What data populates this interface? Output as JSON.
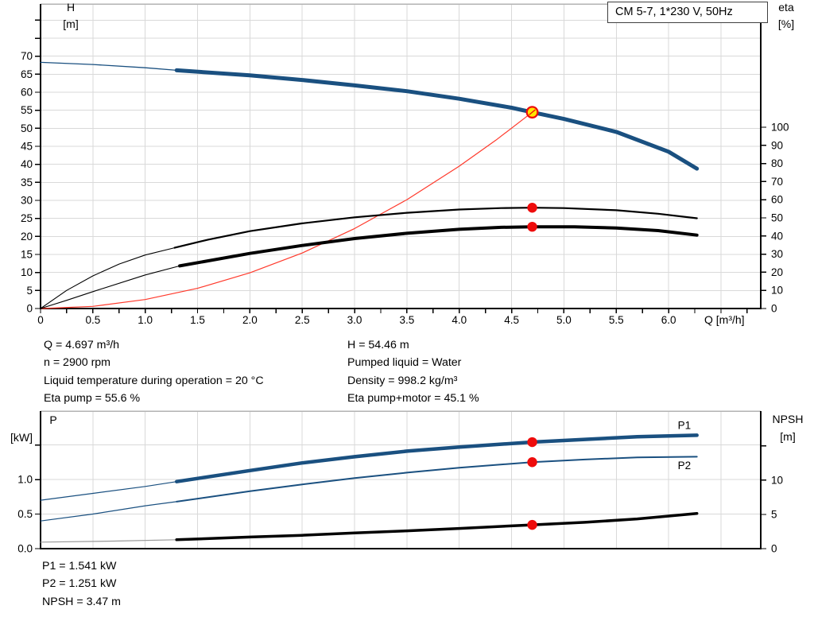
{
  "title_box": "CM 5-7, 1*230 V, 50Hz",
  "axis_headers": {
    "top_left_1": "H",
    "top_left_2": "[m]",
    "top_right_1": "eta",
    "top_right_2": "[%]",
    "x_label": "Q [m³/h]",
    "bottom_left_1": "P",
    "bottom_left_2": "[kW]",
    "bottom_right_1": "NPSH",
    "bottom_right_2": "[m]"
  },
  "info_top": {
    "left": [
      "Q = 4.697 m³/h",
      "n = 2900 rpm",
      "Liquid temperature during operation = 20 °C",
      "Eta pump = 55.6 %"
    ],
    "right": [
      "H = 54.46 m",
      "Pumped liquid = Water",
      "Density = 998.2 kg/m³",
      "Eta pump+motor = 45.1 %"
    ]
  },
  "info_bottom": [
    "P1 = 1.541 kW",
    "P2 = 1.251 kW",
    "NPSH = 3.47 m"
  ],
  "colors": {
    "curve_blue": "#1a5080",
    "curve_black": "#000000",
    "system_red": "#ff392b",
    "dot_red": "#ee0c0c",
    "op_fill": "#ffe600",
    "grid": "#d9d9d9",
    "border_gray": "#b3b3b3",
    "axis": "#000000",
    "npsh_thin": "#999999"
  },
  "operating_point": {
    "q": 4.697,
    "h": 54.46
  },
  "chart_data": [
    {
      "id": "top",
      "type": "line",
      "title": "CM 5-7, 1*230 V, 50Hz",
      "x": {
        "label": "Q [m³/h]",
        "min": 0,
        "max": 6.88,
        "grid_step": 0.5,
        "tick_step": 0.25,
        "labeled_ticks": [
          [
            0,
            "0"
          ],
          [
            0.5,
            "0.5"
          ],
          [
            1,
            "1.0"
          ],
          [
            1.5,
            "1.5"
          ],
          [
            2,
            "2.0"
          ],
          [
            2.5,
            "2.5"
          ],
          [
            3,
            "3.0"
          ],
          [
            3.5,
            "3.5"
          ],
          [
            4,
            "4.0"
          ],
          [
            4.5,
            "4.5"
          ],
          [
            5,
            "5.0"
          ],
          [
            5.5,
            "5.5"
          ],
          [
            6,
            "6.0"
          ]
        ]
      },
      "y_left": {
        "label": "H [m]",
        "min": 0,
        "max": 84.5,
        "grid_step": 5,
        "labeled_ticks": [
          [
            0,
            "0"
          ],
          [
            5,
            "5"
          ],
          [
            10,
            "10"
          ],
          [
            15,
            "15"
          ],
          [
            20,
            "20"
          ],
          [
            25,
            "25"
          ],
          [
            30,
            "30"
          ],
          [
            35,
            "35"
          ],
          [
            40,
            "40"
          ],
          [
            45,
            "45"
          ],
          [
            50,
            "50"
          ],
          [
            55,
            "55"
          ],
          [
            60,
            "60"
          ],
          [
            65,
            "65"
          ],
          [
            70,
            "70"
          ]
        ],
        "extra_ticks": [
          75,
          80
        ]
      },
      "y_right": {
        "label": "eta [%]",
        "min": 0,
        "max": 168,
        "labeled_ticks": [
          [
            0,
            "0"
          ],
          [
            10,
            "10"
          ],
          [
            20,
            "20"
          ],
          [
            30,
            "30"
          ],
          [
            40,
            "40"
          ],
          [
            50,
            "50"
          ],
          [
            60,
            "60"
          ],
          [
            70,
            "70"
          ],
          [
            80,
            "80"
          ],
          [
            90,
            "90"
          ],
          [
            100,
            "100"
          ]
        ],
        "extra_ticks": []
      },
      "series": [
        {
          "name": "pump-curve-thin",
          "axis": "left",
          "color_key": "curve_blue",
          "width": 1.3,
          "points": [
            [
              0,
              68.3
            ],
            [
              0.5,
              67.7
            ],
            [
              1,
              66.8
            ],
            [
              1.3,
              66.1
            ]
          ]
        },
        {
          "name": "pump-curve",
          "axis": "left",
          "color_key": "curve_blue",
          "width": 5,
          "points": [
            [
              1.3,
              66.1
            ],
            [
              2,
              64.7
            ],
            [
              2.5,
              63.4
            ],
            [
              3,
              61.9
            ],
            [
              3.5,
              60.3
            ],
            [
              4,
              58.2
            ],
            [
              4.5,
              55.7
            ],
            [
              4.697,
              54.46
            ],
            [
              5,
              52.6
            ],
            [
              5.5,
              49
            ],
            [
              6,
              43.5
            ],
            [
              6.27,
              38.8
            ]
          ]
        },
        {
          "name": "system-curve",
          "axis": "left",
          "color_key": "system_red",
          "width": 1.2,
          "points": [
            [
              0,
              0
            ],
            [
              0.5,
              0.6
            ],
            [
              1,
              2.5
            ],
            [
              1.5,
              5.6
            ],
            [
              2,
              9.9
            ],
            [
              2.5,
              15.4
            ],
            [
              3,
              22.2
            ],
            [
              3.5,
              30.2
            ],
            [
              4,
              39.5
            ],
            [
              4.35,
              46.7
            ],
            [
              4.697,
              54.46
            ]
          ]
        },
        {
          "name": "eta-pump-thin",
          "axis": "right",
          "color_key": "curve_black",
          "width": 1.1,
          "points": [
            [
              0,
              0
            ],
            [
              0.25,
              10
            ],
            [
              0.5,
              18
            ],
            [
              0.75,
              24.5
            ],
            [
              1,
              29.5
            ],
            [
              1.28,
              33.5
            ]
          ]
        },
        {
          "name": "eta-pump",
          "axis": "right",
          "color_key": "curve_black",
          "width": 2.2,
          "points": [
            [
              1.28,
              33.5
            ],
            [
              1.6,
              38
            ],
            [
              2,
              42.7
            ],
            [
              2.5,
              47
            ],
            [
              3,
              50.3
            ],
            [
              3.5,
              52.8
            ],
            [
              4,
              54.6
            ],
            [
              4.4,
              55.4
            ],
            [
              4.697,
              55.6
            ],
            [
              5,
              55.4
            ],
            [
              5.5,
              54.2
            ],
            [
              5.9,
              52.3
            ],
            [
              6.27,
              49.8
            ]
          ]
        },
        {
          "name": "eta-pump-motor-thin",
          "axis": "right",
          "color_key": "curve_black",
          "width": 1.1,
          "points": [
            [
              0,
              0
            ],
            [
              0.25,
              4.5
            ],
            [
              0.5,
              9.3
            ],
            [
              1,
              18.5
            ],
            [
              1.33,
              23.5
            ]
          ]
        },
        {
          "name": "eta-pump-motor",
          "axis": "right",
          "color_key": "curve_black",
          "width": 4,
          "points": [
            [
              1.33,
              23.5
            ],
            [
              2,
              30.4
            ],
            [
              2.5,
              34.8
            ],
            [
              3,
              38.6
            ],
            [
              3.5,
              41.5
            ],
            [
              4,
              43.7
            ],
            [
              4.4,
              44.8
            ],
            [
              4.697,
              45.1
            ],
            [
              5.1,
              45.1
            ],
            [
              5.5,
              44.4
            ],
            [
              5.9,
              43
            ],
            [
              6.27,
              40.5
            ]
          ]
        }
      ],
      "markers": [
        {
          "name": "operating-point",
          "kind": "op",
          "axis": "left",
          "x": 4.697,
          "y": 54.46
        },
        {
          "name": "eta-pump-dot",
          "kind": "dot",
          "axis": "right",
          "x": 4.697,
          "y": 55.6
        },
        {
          "name": "eta-pump-motor-dot",
          "kind": "dot",
          "axis": "right",
          "x": 4.697,
          "y": 45.1
        }
      ]
    },
    {
      "id": "bottom",
      "type": "line",
      "title": "",
      "x": {
        "label": "",
        "min": 0,
        "max": 6.88,
        "grid_step": 0.5,
        "tick_step": 0,
        "labeled_ticks": []
      },
      "y_left": {
        "label": "P [kW]",
        "min": 0,
        "max": 1.99,
        "grid_step": 0.5,
        "labeled_ticks": [
          [
            0,
            "0.0"
          ],
          [
            0.5,
            "0.5"
          ],
          [
            1,
            "1.0"
          ]
        ],
        "extra_ticks": [
          1.5
        ]
      },
      "y_right": {
        "label": "NPSH [m]",
        "min": 0,
        "max": 20.1,
        "labeled_ticks": [
          [
            0,
            "0"
          ],
          [
            5,
            "5"
          ],
          [
            10,
            "10"
          ]
        ],
        "extra_ticks": [
          15
        ]
      },
      "series": [
        {
          "name": "p1-curve-thin",
          "axis": "left",
          "color_key": "curve_blue",
          "width": 1.2,
          "points": [
            [
              0,
              0.7
            ],
            [
              0.5,
              0.8
            ],
            [
              1,
              0.9
            ],
            [
              1.3,
              0.97
            ]
          ]
        },
        {
          "name": "p1-curve",
          "axis": "left",
          "color_key": "curve_blue",
          "width": 4.5,
          "label": "P1",
          "label_at": [
            6.15,
            1.79
          ],
          "points": [
            [
              1.3,
              0.97
            ],
            [
              2,
              1.13
            ],
            [
              2.5,
              1.24
            ],
            [
              3,
              1.33
            ],
            [
              3.5,
              1.41
            ],
            [
              4,
              1.47
            ],
            [
              4.697,
              1.541
            ],
            [
              5.2,
              1.58
            ],
            [
              5.7,
              1.62
            ],
            [
              6.27,
              1.64
            ]
          ]
        },
        {
          "name": "p2-curve-thin",
          "axis": "left",
          "color_key": "curve_blue",
          "width": 1.2,
          "points": [
            [
              0,
              0.4
            ],
            [
              0.5,
              0.5
            ],
            [
              1,
              0.62
            ],
            [
              1.3,
              0.68
            ]
          ]
        },
        {
          "name": "p2-curve",
          "axis": "left",
          "color_key": "curve_blue",
          "width": 2,
          "label": "P2",
          "label_at": [
            6.15,
            1.21
          ],
          "points": [
            [
              1.3,
              0.68
            ],
            [
              2,
              0.83
            ],
            [
              2.5,
              0.93
            ],
            [
              3,
              1.02
            ],
            [
              3.5,
              1.1
            ],
            [
              4,
              1.17
            ],
            [
              4.697,
              1.251
            ],
            [
              5.2,
              1.29
            ],
            [
              5.7,
              1.32
            ],
            [
              6.27,
              1.33
            ]
          ]
        },
        {
          "name": "npsh-curve-thin",
          "axis": "right",
          "color_key": "npsh_thin",
          "width": 1.2,
          "points": [
            [
              0,
              0.95
            ],
            [
              0.7,
              1.1
            ],
            [
              1.3,
              1.3
            ]
          ]
        },
        {
          "name": "npsh-curve",
          "axis": "right",
          "color_key": "curve_black",
          "width": 3.5,
          "points": [
            [
              1.3,
              1.3
            ],
            [
              2,
              1.7
            ],
            [
              2.5,
              1.95
            ],
            [
              3,
              2.3
            ],
            [
              3.5,
              2.6
            ],
            [
              4,
              2.95
            ],
            [
              4.697,
              3.47
            ],
            [
              5.2,
              3.85
            ],
            [
              5.7,
              4.35
            ],
            [
              6.27,
              5.15
            ]
          ]
        }
      ],
      "markers": [
        {
          "name": "p1-dot",
          "kind": "dot",
          "axis": "left",
          "x": 4.697,
          "y": 1.541
        },
        {
          "name": "p2-dot",
          "kind": "dot",
          "axis": "left",
          "x": 4.697,
          "y": 1.251
        },
        {
          "name": "npsh-dot",
          "kind": "dot",
          "axis": "right",
          "x": 4.697,
          "y": 3.47
        }
      ]
    }
  ]
}
